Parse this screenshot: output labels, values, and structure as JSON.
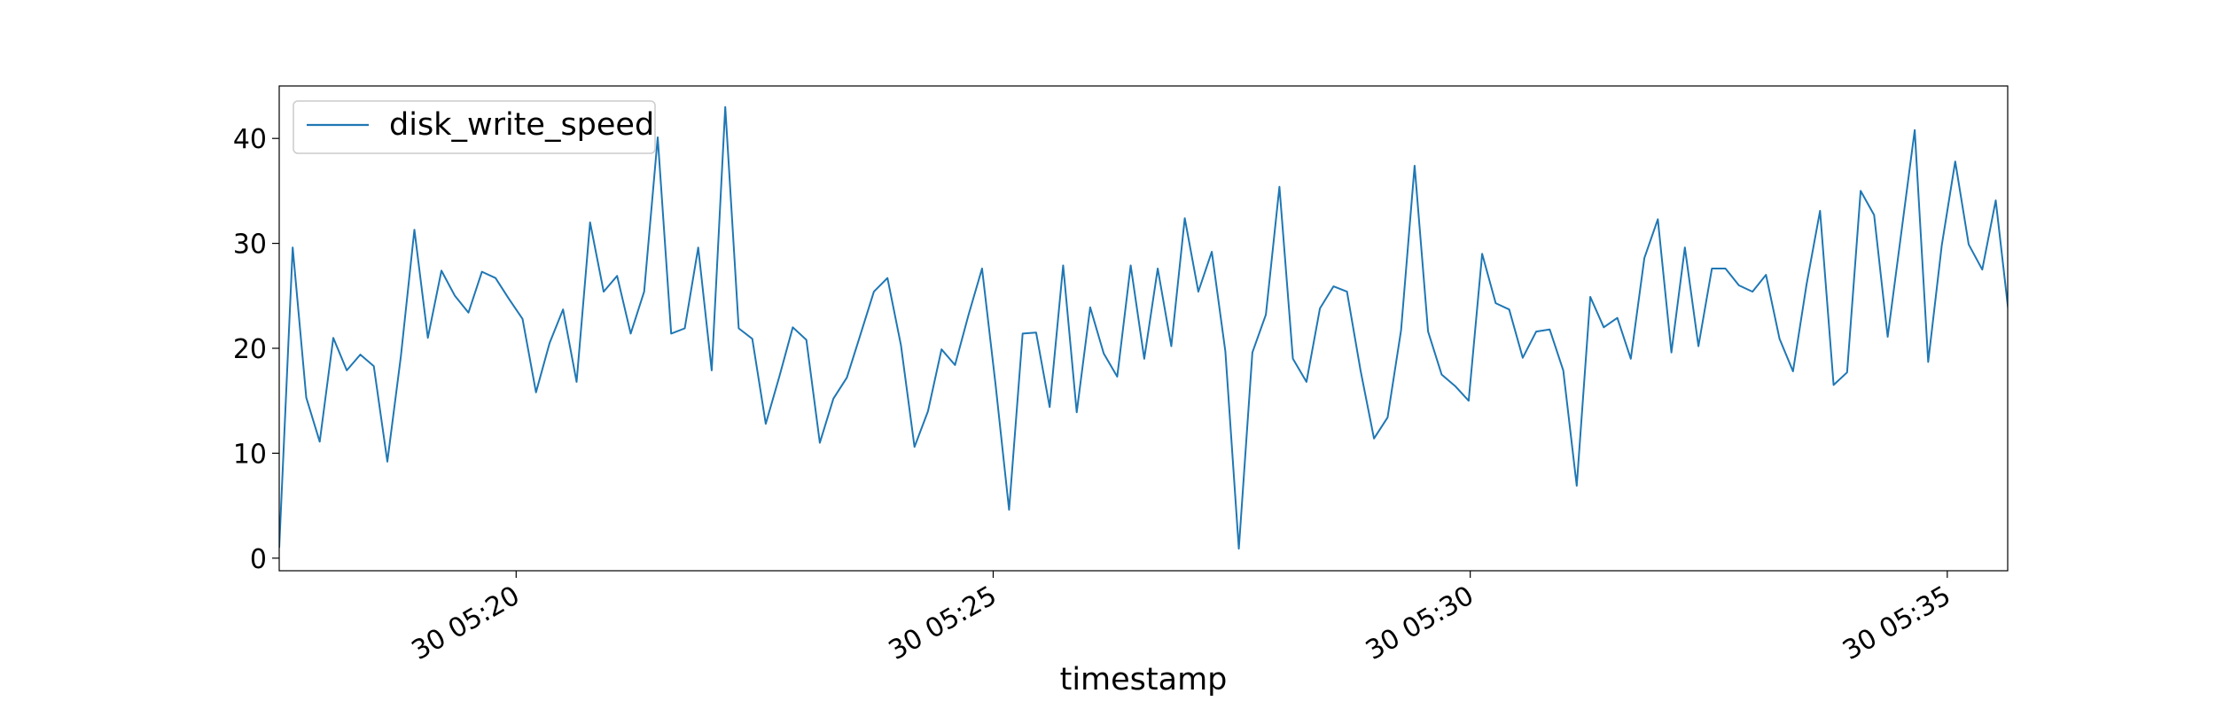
{
  "chart_data": {
    "type": "line",
    "title": "",
    "xlabel": "timestamp",
    "ylabel": "",
    "x_tick_labels": [
      "30 05:20",
      "30 05:25",
      "30 05:30",
      "30 05:35"
    ],
    "x_tick_minutes": [
      20,
      25,
      30,
      35
    ],
    "y_ticks": [
      0,
      10,
      20,
      30,
      40
    ],
    "xlim": [
      "30 05:17:31",
      "30 05:35:38"
    ],
    "ylim": [
      -1.2,
      45
    ],
    "legend_position": "upper-left",
    "grid": false,
    "colors": {
      "line": "#1f77b4",
      "axes": "#000000"
    },
    "series": [
      {
        "name": "disk_write_speed",
        "x_start": "30 05:17:31",
        "x_step_seconds": 8.5,
        "values": [
          1.0,
          29.6,
          15.3,
          11.1,
          21.0,
          17.9,
          19.4,
          18.3,
          9.2,
          19.2,
          31.3,
          21.0,
          27.4,
          25.0,
          23.4,
          27.3,
          26.7,
          24.7,
          22.8,
          15.8,
          20.5,
          23.7,
          16.8,
          32.0,
          25.4,
          26.9,
          21.4,
          25.4,
          40.1,
          21.4,
          21.9,
          29.6,
          17.9,
          43.0,
          21.9,
          20.9,
          12.8,
          17.3,
          22.0,
          20.8,
          11.0,
          15.2,
          17.2,
          21.3,
          25.4,
          26.7,
          20.3,
          10.6,
          14.0,
          19.9,
          18.4,
          23.2,
          27.6,
          16.5,
          4.6,
          21.4,
          21.5,
          14.4,
          27.9,
          13.9,
          23.9,
          19.5,
          17.3,
          27.9,
          19.0,
          27.6,
          20.2,
          32.4,
          25.4,
          29.2,
          19.7,
          0.9,
          19.6,
          23.2,
          35.4,
          19.0,
          16.8,
          23.8,
          25.9,
          25.4,
          17.9,
          11.4,
          13.4,
          21.7,
          37.4,
          21.6,
          17.5,
          16.4,
          15.0,
          29.0,
          24.3,
          23.7,
          19.1,
          21.6,
          21.8,
          17.9,
          6.9,
          24.9,
          22.0,
          22.9,
          19.0,
          28.6,
          32.3,
          19.6,
          29.6,
          20.2,
          27.6,
          27.6,
          26.0,
          25.4,
          27.0,
          20.9,
          17.8,
          26.1,
          33.1,
          16.5,
          17.7,
          35.0,
          32.7,
          21.1,
          30.9,
          40.8,
          18.7,
          29.8,
          37.8,
          29.9,
          27.5,
          34.1,
          22.8
        ]
      }
    ]
  }
}
